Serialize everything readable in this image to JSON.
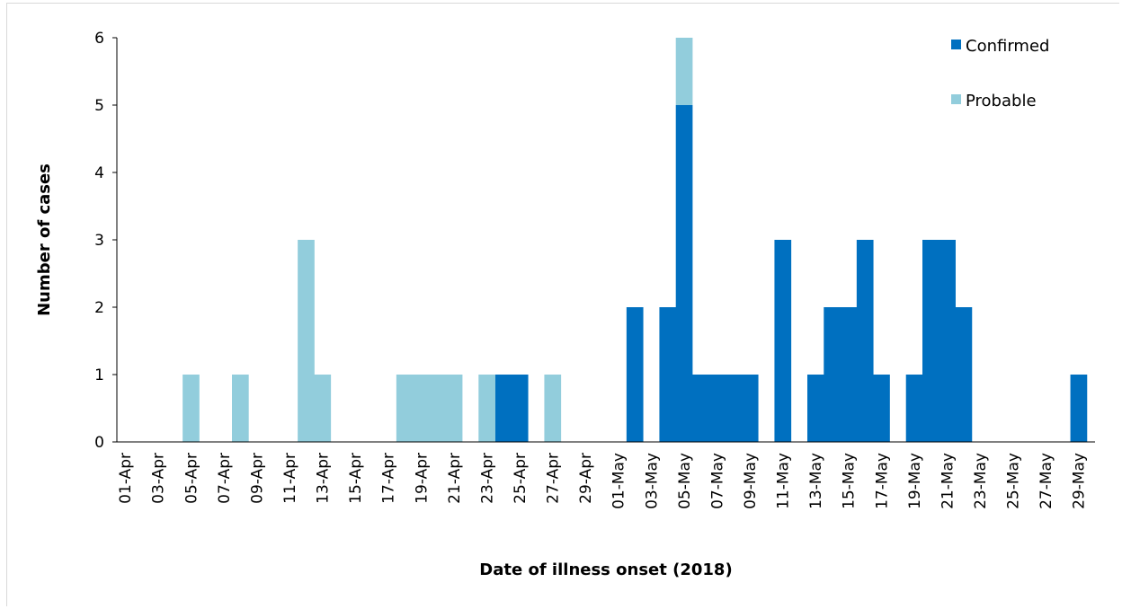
{
  "chart_data": {
    "type": "bar",
    "stacked": true,
    "xlabel": "Date of illness onset (2018)",
    "ylabel": "Number of cases",
    "ylim": [
      0,
      6
    ],
    "yticks": [
      0,
      1,
      2,
      3,
      4,
      5,
      6
    ],
    "legend_position": "top-right",
    "grid": false,
    "colors": {
      "Confirmed": "#0070c0",
      "Probable": "#92cddc"
    },
    "categories": [
      "01-Apr",
      "02-Apr",
      "03-Apr",
      "04-Apr",
      "05-Apr",
      "06-Apr",
      "07-Apr",
      "08-Apr",
      "09-Apr",
      "10-Apr",
      "11-Apr",
      "12-Apr",
      "13-Apr",
      "14-Apr",
      "15-Apr",
      "16-Apr",
      "17-Apr",
      "18-Apr",
      "19-Apr",
      "20-Apr",
      "21-Apr",
      "22-Apr",
      "23-Apr",
      "24-Apr",
      "25-Apr",
      "26-Apr",
      "27-Apr",
      "28-Apr",
      "29-Apr",
      "30-Apr",
      "01-May",
      "02-May",
      "03-May",
      "04-May",
      "05-May",
      "06-May",
      "07-May",
      "08-May",
      "09-May",
      "10-May",
      "11-May",
      "12-May",
      "13-May",
      "14-May",
      "15-May",
      "16-May",
      "17-May",
      "18-May",
      "19-May",
      "20-May",
      "21-May",
      "22-May",
      "23-May",
      "24-May",
      "25-May",
      "26-May",
      "27-May",
      "28-May",
      "29-May"
    ],
    "tick_labels": [
      "01-Apr",
      "03-Apr",
      "05-Apr",
      "07-Apr",
      "09-Apr",
      "11-Apr",
      "13-Apr",
      "15-Apr",
      "17-Apr",
      "19-Apr",
      "21-Apr",
      "23-Apr",
      "25-Apr",
      "27-Apr",
      "29-Apr",
      "01-May",
      "03-May",
      "05-May",
      "07-May",
      "09-May",
      "11-May",
      "13-May",
      "15-May",
      "17-May",
      "19-May",
      "21-May",
      "23-May",
      "25-May",
      "27-May",
      "29-May"
    ],
    "series": [
      {
        "name": "Confirmed",
        "values": [
          0,
          0,
          0,
          0,
          0,
          0,
          0,
          0,
          0,
          0,
          0,
          0,
          0,
          0,
          0,
          0,
          0,
          0,
          0,
          0,
          0,
          0,
          0,
          1,
          1,
          0,
          0,
          0,
          0,
          0,
          0,
          2,
          0,
          2,
          5,
          1,
          1,
          1,
          1,
          0,
          3,
          0,
          1,
          2,
          2,
          3,
          1,
          0,
          1,
          3,
          3,
          2,
          0,
          0,
          0,
          0,
          0,
          0,
          1
        ]
      },
      {
        "name": "Probable",
        "values": [
          0,
          0,
          0,
          0,
          1,
          0,
          0,
          1,
          0,
          0,
          0,
          3,
          1,
          0,
          0,
          0,
          0,
          1,
          1,
          1,
          1,
          0,
          1,
          0,
          0,
          0,
          1,
          0,
          0,
          0,
          0,
          0,
          0,
          0,
          1,
          0,
          0,
          0,
          0,
          0,
          0,
          0,
          0,
          0,
          0,
          0,
          0,
          0,
          0,
          0,
          0,
          0,
          0,
          0,
          0,
          0,
          0,
          0,
          0
        ]
      }
    ]
  }
}
